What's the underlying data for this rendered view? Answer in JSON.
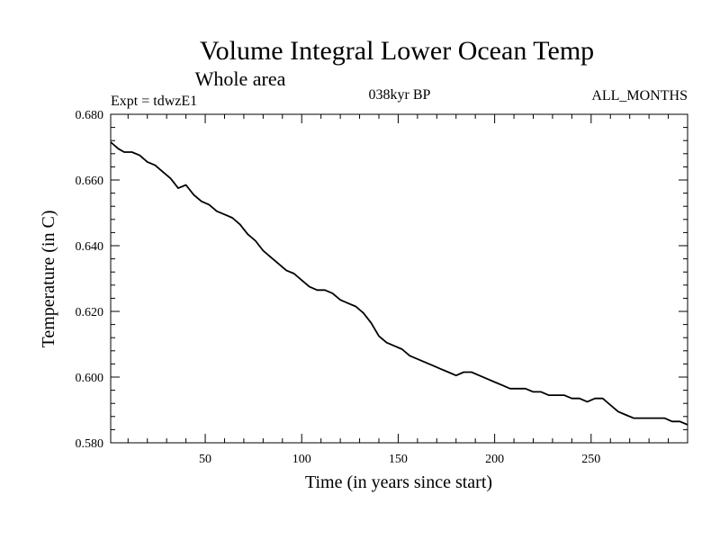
{
  "chart_data": {
    "type": "line",
    "title": "Volume Integral Lower Ocean Temp",
    "subtitle": "Whole area",
    "expt_label": "Expt = tdwzE1",
    "period_label": "038kyr BP",
    "months_label": "ALL_MONTHS",
    "xlabel": "Time (in years since start)",
    "ylabel": "Temperature (in C)",
    "xlim": [
      1,
      300
    ],
    "ylim": [
      0.58,
      0.68
    ],
    "x_ticks": [
      50,
      100,
      150,
      200,
      250
    ],
    "x_tick_labels": [
      "50",
      "100",
      "150",
      "200",
      "250"
    ],
    "y_ticks": [
      0.58,
      0.6,
      0.62,
      0.64,
      0.66,
      0.68
    ],
    "y_tick_labels": [
      "0.580",
      "0.600",
      "0.620",
      "0.640",
      "0.660",
      "0.680"
    ],
    "series": [
      {
        "name": "Temperature",
        "color": "#000000",
        "x": [
          1,
          5,
          8,
          12,
          16,
          20,
          24,
          28,
          32,
          36,
          40,
          44,
          48,
          52,
          56,
          60,
          64,
          68,
          72,
          76,
          80,
          84,
          88,
          92,
          96,
          100,
          104,
          108,
          112,
          116,
          120,
          124,
          128,
          132,
          136,
          140,
          144,
          148,
          152,
          156,
          160,
          164,
          168,
          172,
          176,
          180,
          184,
          188,
          192,
          196,
          200,
          204,
          208,
          212,
          216,
          220,
          224,
          228,
          232,
          236,
          240,
          244,
          248,
          252,
          256,
          260,
          264,
          268,
          272,
          276,
          280,
          284,
          288,
          292,
          296,
          300
        ],
        "values": [
          0.6715,
          0.6695,
          0.6685,
          0.6685,
          0.6675,
          0.6655,
          0.6645,
          0.6625,
          0.6605,
          0.6575,
          0.6585,
          0.6555,
          0.6535,
          0.6525,
          0.6505,
          0.6495,
          0.6485,
          0.6465,
          0.6435,
          0.6415,
          0.6385,
          0.6365,
          0.6345,
          0.6325,
          0.6315,
          0.6295,
          0.6275,
          0.6265,
          0.6265,
          0.6255,
          0.6235,
          0.6225,
          0.6215,
          0.6195,
          0.6165,
          0.6125,
          0.6105,
          0.6095,
          0.6085,
          0.6065,
          0.6055,
          0.6045,
          0.6035,
          0.6025,
          0.6015,
          0.6005,
          0.6015,
          0.6015,
          0.6005,
          0.5995,
          0.5985,
          0.5975,
          0.5965,
          0.5965,
          0.5965,
          0.5955,
          0.5955,
          0.5945,
          0.5945,
          0.5945,
          0.5935,
          0.5935,
          0.5925,
          0.5935,
          0.5935,
          0.5915,
          0.5895,
          0.5885,
          0.5875,
          0.5875,
          0.5875,
          0.5875,
          0.5875,
          0.5865,
          0.5865,
          0.5855
        ]
      }
    ]
  }
}
